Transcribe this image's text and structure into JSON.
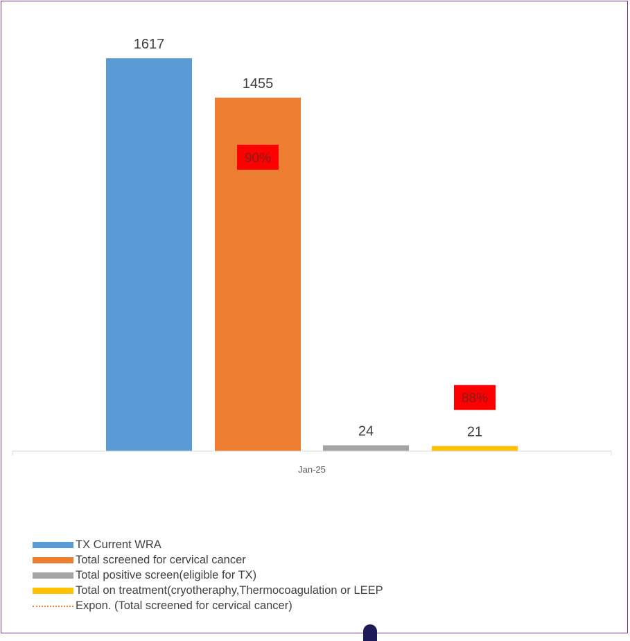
{
  "chart_data": {
    "type": "bar",
    "categories": [
      "Jan-25"
    ],
    "series": [
      {
        "name": "TX Current WRA",
        "values": [
          1617
        ],
        "color": "#5b9bd5"
      },
      {
        "name": "Total screened for cervical cancer",
        "values": [
          1455
        ],
        "color": "#ed7d31"
      },
      {
        "name": "Total positive screen(eligible for TX)",
        "values": [
          24
        ],
        "color": "#a5a5a5"
      },
      {
        "name": "Total on treatment(cryotheraphy,Thermocoagulation or LEEP",
        "values": [
          21
        ],
        "color": "#ffc000"
      }
    ],
    "trendline": {
      "name": "Expon. (Total screened for cervical cancer)",
      "style": "dotted",
      "color": "#ed7d31"
    },
    "annotations": [
      {
        "text": "90%",
        "series": "Total screened for cervical cancer",
        "background": "#ff0000"
      },
      {
        "text": "88%",
        "series": "Total on treatment(cryotheraphy,Thermocoagulation or LEEP",
        "background": "#ff0000"
      }
    ],
    "ylim": [
      0,
      1700
    ],
    "legend_position": "bottom-left",
    "grid": false
  }
}
